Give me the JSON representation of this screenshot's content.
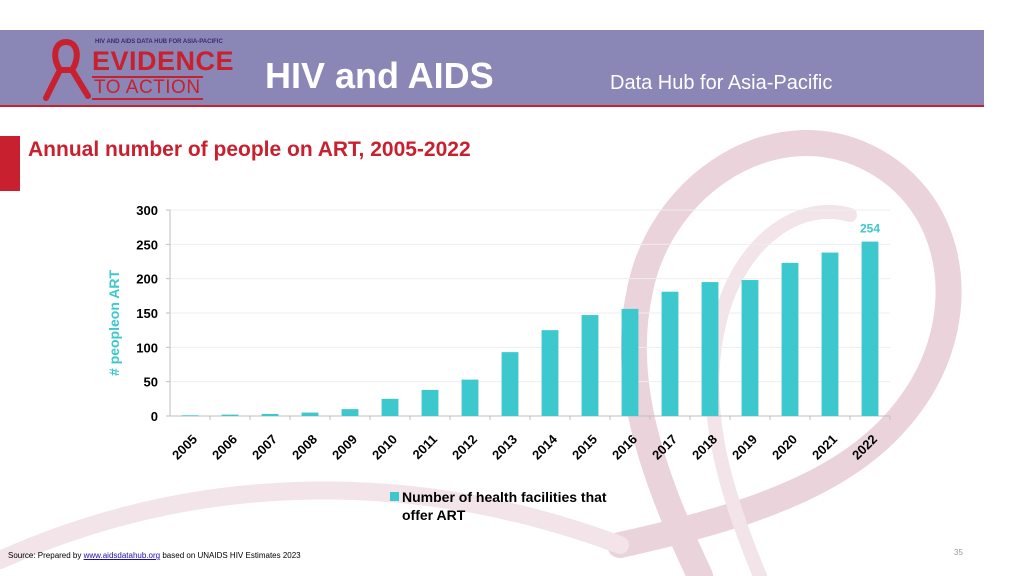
{
  "header": {
    "logo_small": "HIV AND AIDS DATA HUB FOR ASIA-PACIFIC",
    "logo_line1": "EVIDENCE",
    "logo_line2": "TO ACTION",
    "title": "HIV and AIDS",
    "subtitle": "Data Hub for Asia-Pacific"
  },
  "page_title": "Annual number of people on ART, 2005-2022",
  "colors": {
    "header_bg": "#8a86b5",
    "accent_red": "#c8202f",
    "bar": "#3cc8cc"
  },
  "chart_data": {
    "type": "bar",
    "title": "",
    "xlabel": "",
    "ylabel": "# peopleon ART",
    "ylim": [
      0,
      300
    ],
    "yticks": [
      "0",
      "50",
      "100",
      "150",
      "200",
      "250",
      "300"
    ],
    "categories": [
      "2005",
      "2006",
      "2007",
      "2008",
      "2009",
      "2010",
      "2011",
      "2012",
      "2013",
      "2014",
      "2015",
      "2016",
      "2017",
      "2018",
      "2019",
      "2020",
      "2021",
      "2022"
    ],
    "series": [
      {
        "name": "Number of health facilities that offer ART",
        "values": [
          1,
          2,
          3,
          5,
          10,
          25,
          38,
          53,
          93,
          125,
          147,
          156,
          181,
          195,
          198,
          223,
          238,
          254
        ]
      }
    ],
    "data_labels": [
      {
        "category": "2022",
        "text": "254"
      }
    ],
    "legend_position": "bottom",
    "grid": true
  },
  "legend_line1": "Number of health facilities that",
  "legend_line2": "offer ART",
  "footer": {
    "source_prefix": "Source: Prepared by",
    "source_link": "www.aidsdatahub.org",
    "source_suffix": "based on UNAIDS HIV Estimates 2023",
    "page_number": "35"
  }
}
